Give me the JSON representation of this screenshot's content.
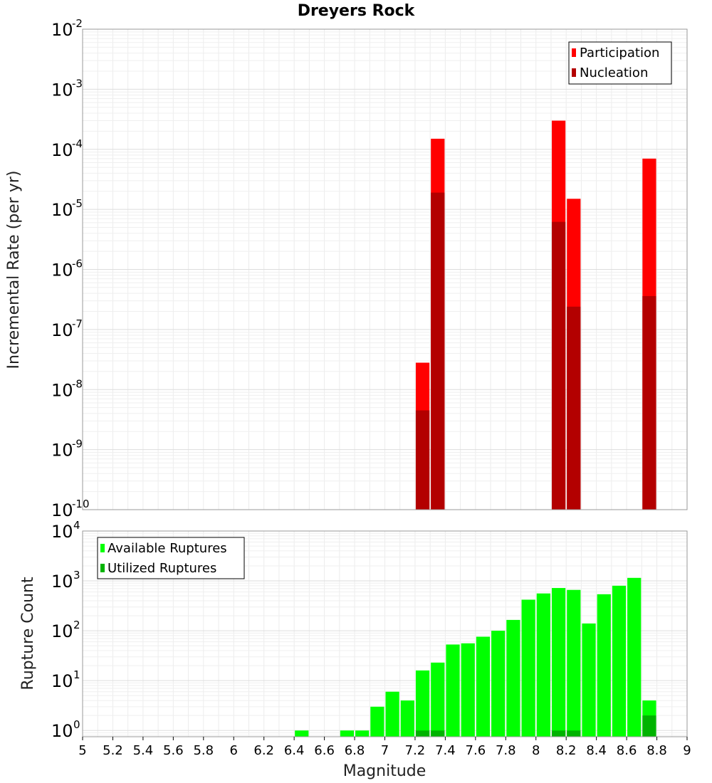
{
  "chart_data": [
    {
      "type": "bar",
      "title": "Dreyers Rock",
      "xlabel": "",
      "ylabel": "Incremental Rate (per yr)",
      "yscale": "log",
      "ylim": [
        1e-10,
        0.01
      ],
      "xlim": [
        5,
        9
      ],
      "grid": true,
      "legend_position": "top-right",
      "x": [
        7.25,
        7.35,
        8.15,
        8.25,
        8.75
      ],
      "series": [
        {
          "name": "Participation",
          "color": "#ff0000",
          "values": [
            2.8e-08,
            0.00015,
            0.0003,
            1.5e-05,
            7e-05
          ]
        },
        {
          "name": "Nucleation",
          "color": "#b30000",
          "values": [
            4.5e-09,
            1.9e-05,
            6.2e-06,
            2.4e-07,
            3.6e-07
          ]
        }
      ],
      "y_ticks": [
        {
          "base": "10",
          "exp": "-2"
        },
        {
          "base": "10",
          "exp": "-3"
        },
        {
          "base": "10",
          "exp": "-4"
        },
        {
          "base": "10",
          "exp": "-5"
        },
        {
          "base": "10",
          "exp": "-6"
        },
        {
          "base": "10",
          "exp": "-7"
        },
        {
          "base": "10",
          "exp": "-8"
        },
        {
          "base": "10",
          "exp": "-9"
        },
        {
          "base": "10",
          "exp": "-10"
        }
      ]
    },
    {
      "type": "bar",
      "title": "",
      "xlabel": "Magnitude",
      "ylabel": "Rupture Count",
      "yscale": "log",
      "ylim": [
        0.75,
        10000
      ],
      "xlim": [
        5,
        9
      ],
      "grid": true,
      "legend_position": "top-left",
      "x": [
        6.45,
        6.75,
        6.85,
        6.95,
        7.05,
        7.15,
        7.25,
        7.35,
        7.45,
        7.55,
        7.65,
        7.75,
        7.85,
        7.95,
        8.05,
        8.15,
        8.25,
        8.35,
        8.45,
        8.55,
        8.65,
        8.75
      ],
      "series": [
        {
          "name": "Available Ruptures",
          "color": "#00ff00",
          "values": [
            1,
            1,
            1,
            3,
            6,
            4,
            16,
            23,
            53,
            56,
            76,
            100,
            165,
            420,
            560,
            720,
            660,
            140,
            540,
            800,
            1150,
            4
          ]
        },
        {
          "name": "Utilized Ruptures",
          "color": "#00b300",
          "values": [
            0,
            0,
            0,
            0,
            0,
            0,
            1,
            1,
            0,
            0,
            0,
            0,
            0,
            0,
            0,
            1,
            1,
            0,
            0,
            0,
            0,
            2
          ]
        }
      ],
      "y_ticks": [
        {
          "base": "10",
          "exp": "4"
        },
        {
          "base": "10",
          "exp": "3"
        },
        {
          "base": "10",
          "exp": "2"
        },
        {
          "base": "10",
          "exp": "1"
        },
        {
          "base": "10",
          "exp": "0"
        }
      ],
      "x_ticks": [
        "5",
        "5.2",
        "5.4",
        "5.6",
        "5.8",
        "6",
        "6.2",
        "6.4",
        "6.6",
        "6.8",
        "7",
        "7.2",
        "7.4",
        "7.6",
        "7.8",
        "8",
        "8.2",
        "8.4",
        "8.6",
        "8.8",
        "9"
      ]
    }
  ]
}
